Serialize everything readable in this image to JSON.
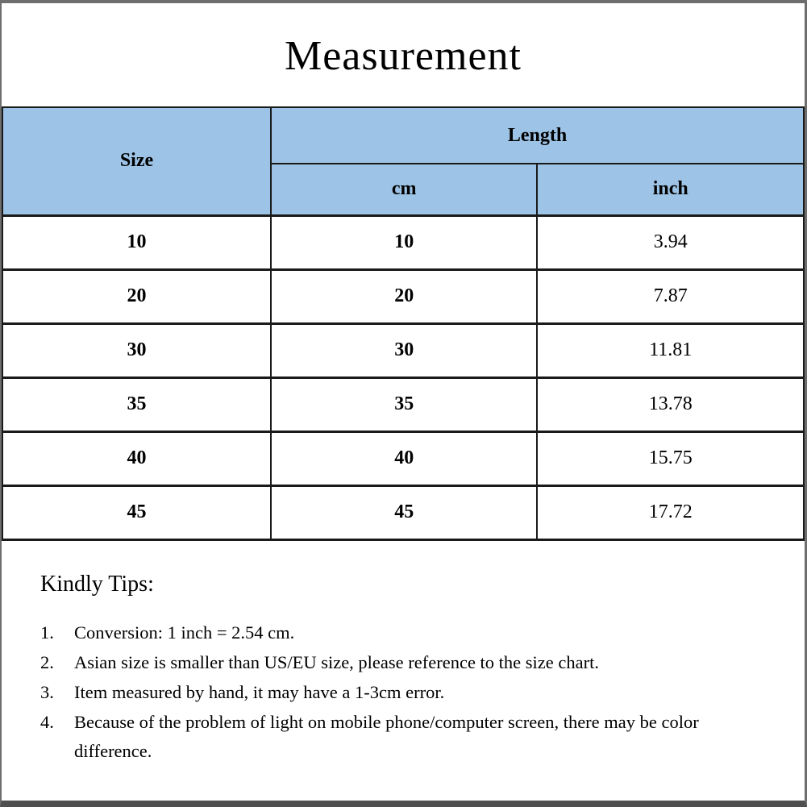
{
  "title": "Measurement",
  "colors": {
    "header_bg": "#9dc3e6",
    "table_border": "#1a1a1a",
    "frame_border": "#6e6e6e"
  },
  "table": {
    "size_header": "Size",
    "length_header": "Length",
    "cm_header": "cm",
    "inch_header": "inch",
    "rows": [
      {
        "size": "10",
        "cm": "10",
        "inch": "3.94"
      },
      {
        "size": "20",
        "cm": "20",
        "inch": "7.87"
      },
      {
        "size": "30",
        "cm": "30",
        "inch": "11.81"
      },
      {
        "size": "35",
        "cm": "35",
        "inch": "13.78"
      },
      {
        "size": "40",
        "cm": "40",
        "inch": "15.75"
      },
      {
        "size": "45",
        "cm": "45",
        "inch": "17.72"
      }
    ]
  },
  "tips": {
    "title": "Kindly Tips:",
    "items": [
      {
        "num": "1.",
        "text": "Conversion: 1 inch = 2.54 cm."
      },
      {
        "num": "2.",
        "text": "Asian size is smaller than US/EU size, please reference to the size chart."
      },
      {
        "num": "3.",
        "text": "Item measured by hand, it may have a 1-3cm error."
      },
      {
        "num": "4.",
        "text": "Because of the problem of light on mobile phone/computer screen, there may be color difference."
      }
    ]
  }
}
